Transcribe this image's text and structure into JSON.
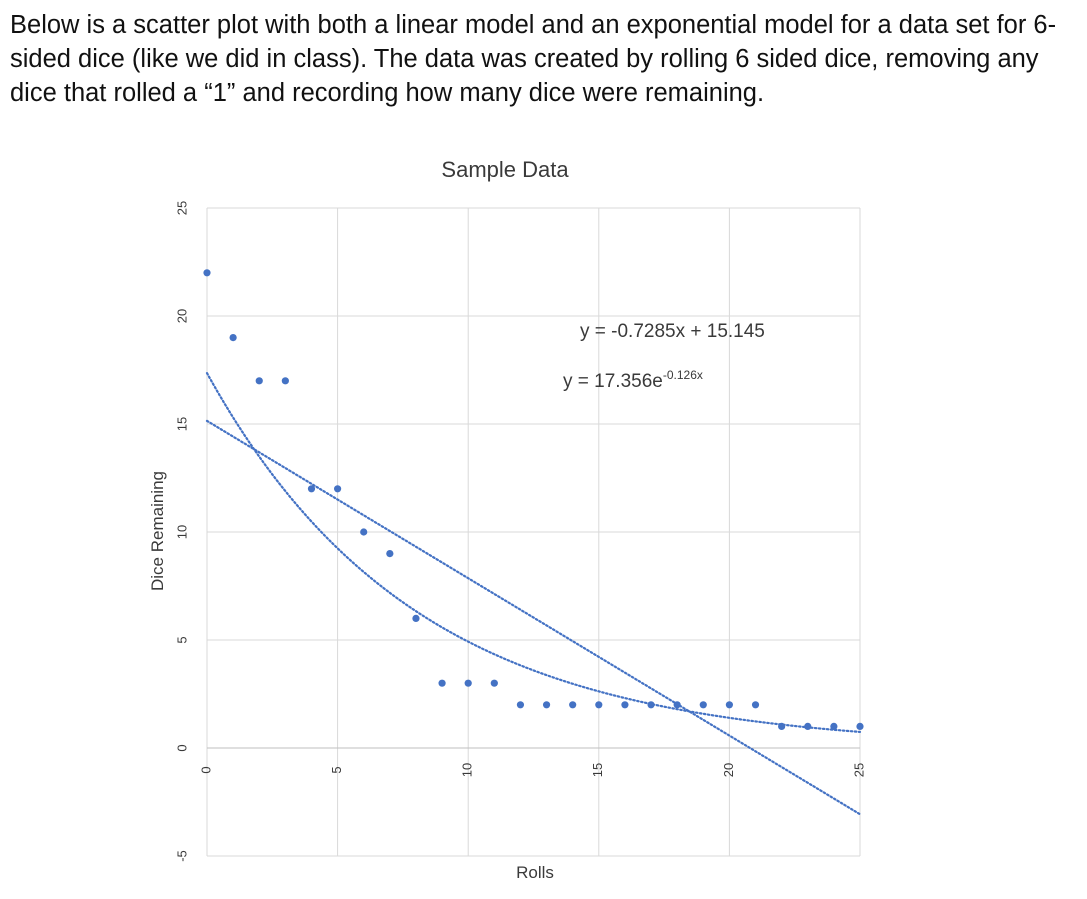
{
  "intro_text": "Below is a scatter plot with both a linear model and an exponential model for a data set for 6-sided dice (like we did in class).  The data was created by rolling 6 sided dice, removing any dice that rolled a “1” and recording how many dice were remaining.",
  "chart_data": {
    "type": "scatter",
    "title": "Sample Data",
    "xlabel": "Rolls",
    "ylabel": "Dice Remaining",
    "xlim": [
      0,
      25
    ],
    "ylim": [
      -5,
      25
    ],
    "x_ticks": [
      "0",
      "5",
      "10",
      "15",
      "20",
      "25"
    ],
    "y_ticks": [
      "-5",
      "0",
      "5",
      "10",
      "15",
      "20",
      "25"
    ],
    "grid": true,
    "legend": "none",
    "series": [
      {
        "x": [
          0,
          1,
          2,
          3,
          4,
          5,
          6,
          7,
          8,
          9,
          10,
          11,
          12,
          13,
          14,
          15,
          16,
          17,
          18,
          19,
          20,
          21,
          22,
          23,
          24,
          25
        ],
        "y": [
          22,
          19,
          17,
          17,
          12,
          12,
          10,
          9,
          6,
          3,
          3,
          3,
          2,
          2,
          2,
          2,
          2,
          2,
          2,
          2,
          2,
          2,
          1,
          1,
          1,
          1
        ],
        "color": "#4472c4"
      }
    ],
    "trendlines": [
      {
        "type": "linear",
        "slope": -0.7285,
        "intercept": 15.145,
        "equation": "y = -0.7285x + 15.145",
        "color": "#4472c4",
        "style": "dotted"
      },
      {
        "type": "exponential",
        "a": 17.356,
        "b": -0.126,
        "equation_base": "y = 17.356e",
        "equation_exponent": "-0.126x",
        "color": "#4472c4",
        "style": "dotted"
      }
    ]
  }
}
